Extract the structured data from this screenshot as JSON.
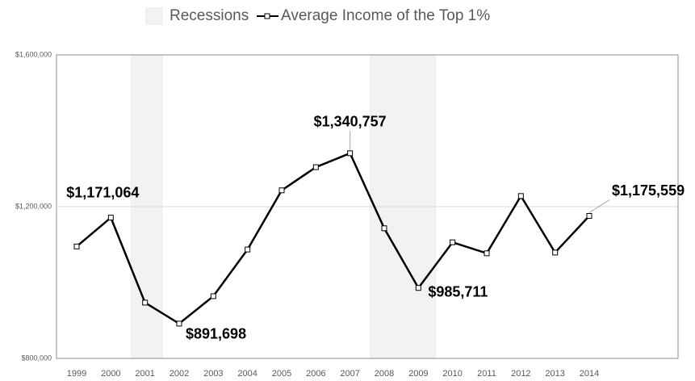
{
  "chart_data": {
    "type": "line",
    "categories": [
      "1999",
      "2000",
      "2001",
      "2002",
      "2003",
      "2004",
      "2005",
      "2006",
      "2007",
      "2008",
      "2009",
      "2010",
      "2011",
      "2012",
      "2013",
      "2014"
    ],
    "series": [
      {
        "name": "Average Income of the Top 1%",
        "color": "#000000",
        "values": [
          1095000,
          1171064,
          947000,
          891698,
          964000,
          1087000,
          1243000,
          1304000,
          1340757,
          1143000,
          985711,
          1106000,
          1077000,
          1228000,
          1079000,
          1175559
        ],
        "value_labels": [
          null,
          "$1,171,064",
          null,
          "$891,698",
          null,
          null,
          null,
          null,
          "$1,340,757",
          null,
          "$985,711",
          null,
          null,
          null,
          null,
          "$1,175,559"
        ]
      }
    ],
    "recessions": {
      "name": "Recessions",
      "color": "#f2f2f2",
      "periods": [
        [
          "2001",
          "2001"
        ],
        [
          "2008",
          "2009"
        ]
      ]
    },
    "ylim": [
      800000,
      1600000
    ],
    "yticks": [
      {
        "value": 800000,
        "label": "$800,000"
      },
      {
        "value": 1200000,
        "label": "$1,200,000"
      },
      {
        "value": 1600000,
        "label": "$1,600,000"
      }
    ],
    "grid": true,
    "legend": "top"
  }
}
